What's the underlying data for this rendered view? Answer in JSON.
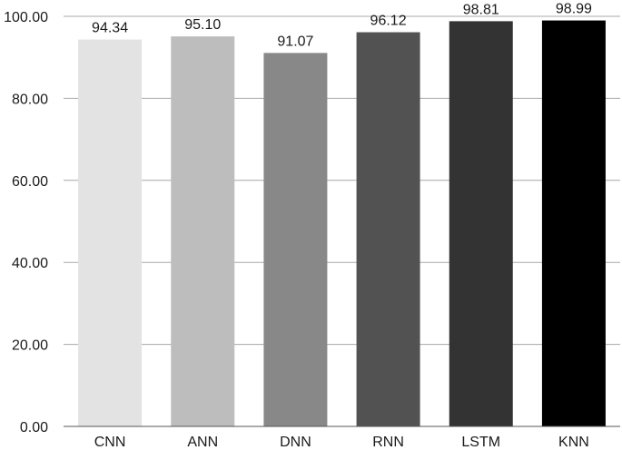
{
  "chart_data": {
    "type": "bar",
    "categories": [
      "CNN",
      "ANN",
      "DNN",
      "RNN",
      "LSTM",
      "KNN"
    ],
    "values": [
      94.34,
      95.1,
      91.07,
      96.12,
      98.81,
      98.99
    ],
    "data_labels": [
      "94.34",
      "95.10",
      "91.07",
      "96.12",
      "98.81",
      "98.99"
    ],
    "bar_colors": [
      "#e3e3e3",
      "#bdbdbd",
      "#888888",
      "#525252",
      "#333333",
      "#000000"
    ],
    "yticks": [
      "0.00",
      "20.00",
      "40.00",
      "60.00",
      "80.00",
      "100.00"
    ],
    "ylim": [
      0,
      100
    ],
    "grid": true,
    "legend": false
  }
}
